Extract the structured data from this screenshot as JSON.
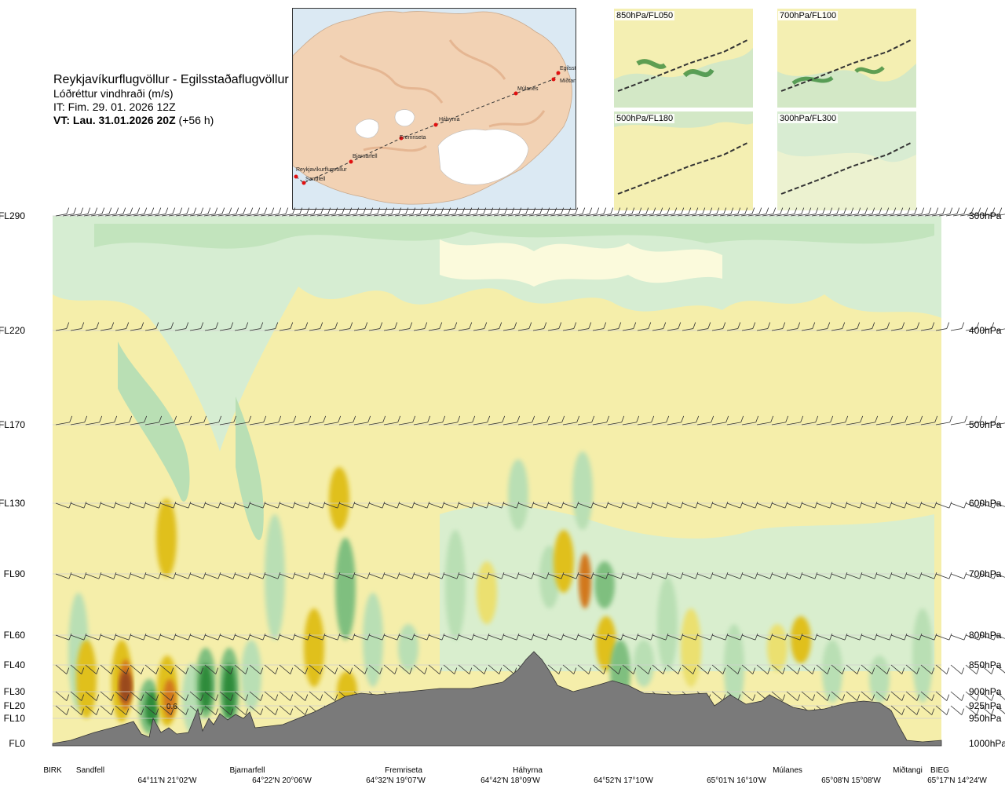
{
  "header": {
    "route": "Reykjavíkurflugvöllur - Egilsstaðaflugvöllur",
    "variable": "Lóðréttur vindhraði (m/s)",
    "init_time": "IT: Fim. 29. 01. 2026 12Z",
    "valid_time": "VT: Lau. 31.01.2026 20Z",
    "lead": "(+56 h)"
  },
  "map": {
    "waypoints": [
      "Reykjavíkurflugvöllur",
      "Sandfell",
      "Bjarnarfell",
      "Fremriseta",
      "Háhyrna",
      "Múlanes",
      "Miðtangi",
      "Egilsstaðir"
    ]
  },
  "thumbnails": [
    {
      "label": "850hPa/FL050"
    },
    {
      "label": "700hPa/FL100"
    },
    {
      "label": "500hPa/FL180"
    },
    {
      "label": "300hPa/FL300"
    }
  ],
  "chart_data": {
    "type": "heatmap",
    "title": "Reykjavíkurflugvöllur - Egilsstaðaflugvöllur",
    "variable": "Lóðréttur vindhraði (m/s)",
    "left_axis": [
      "FL290",
      "FL220",
      "FL170",
      "FL130",
      "FL90",
      "FL60",
      "FL40",
      "FL30",
      "FL20",
      "FL10",
      "FL0"
    ],
    "right_axis": [
      "300hPa",
      "400hPa",
      "500hPa",
      "600hPa",
      "700hPa",
      "800hPa",
      "850hPa",
      "900hPa",
      "925hPa",
      "950hPa",
      "1000hPa"
    ],
    "waypoints": [
      "BIRK",
      "Sandfell",
      "Bjarnarfell",
      "Fremriseta",
      "Háhyrna",
      "Múlanes",
      "Miðtangi",
      "BIEG"
    ],
    "coordinates": [
      "64°11'N 21°02'W",
      "64°22'N 20°06'W",
      "64°32'N 19°07'W",
      "64°42'N 18°09'W",
      "64°52'N 17°10'W",
      "65°01'N 16°10'W",
      "65°08'N 15°08'W",
      "65°17'N 14°24'W"
    ],
    "annotation": "0.6",
    "colors": {
      "strong_down": "#2e8b3a",
      "mod_down": "#7fbf7f",
      "weak_down": "#b9dfb4",
      "faint_down": "#d6edd2",
      "neutral": "#fbfadc",
      "faint_up": "#f5eeaa",
      "weak_up": "#ebe070",
      "mod_up": "#e0c01f",
      "strong_up": "#d2781e",
      "very_strong_up": "#9a4a1f",
      "terrain": "#7a7a7a"
    }
  }
}
